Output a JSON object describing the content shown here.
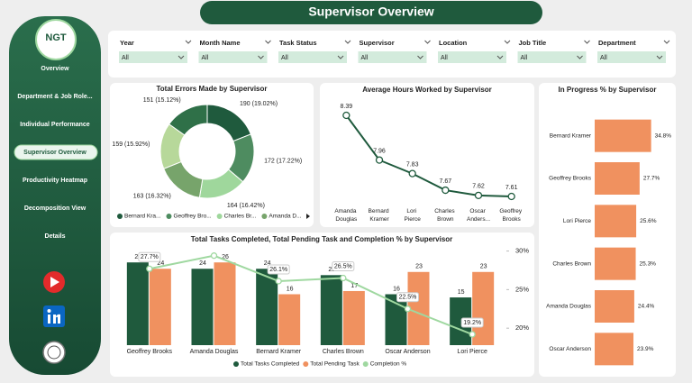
{
  "header": {
    "title": "Supervisor Overview"
  },
  "logo": {
    "text": "NGT"
  },
  "nav": {
    "items": [
      "Overview",
      "Department & Job Role...",
      "Individual Performance",
      "Supervisor Overview",
      "Productivity Heatmap",
      "Decomposition View",
      "Details"
    ],
    "active": 3
  },
  "filters": [
    {
      "label": "Year",
      "value": "All"
    },
    {
      "label": "Month Name",
      "value": "All"
    },
    {
      "label": "Task Status",
      "value": "All"
    },
    {
      "label": "Supervisor",
      "value": "All"
    },
    {
      "label": "Location",
      "value": "All"
    },
    {
      "label": "Job Title",
      "value": "All"
    },
    {
      "label": "Department",
      "value": "All"
    }
  ],
  "chart_data": [
    {
      "type": "donut",
      "title": "Total Errors Made by Supervisor",
      "categories": [
        "Bernard Kra...",
        "Geoffrey Bro...",
        "Charles Br...",
        "Amanda D...",
        null,
        null
      ],
      "values": [
        190,
        172,
        164,
        163,
        159,
        151
      ],
      "value_labels": [
        "190 (19.02%)",
        "172 (17.22%)",
        "164 (16.42%)",
        "163 (16.32%)",
        "159 (15.92%)",
        "151 (15.12%)"
      ],
      "colors": [
        "#1f5a3d",
        "#4e8c60",
        "#9fd79c",
        "#77a46b",
        "#b7d89a",
        "#2f7048"
      ]
    },
    {
      "type": "line",
      "title": "Average Hours Worked by Supervisor",
      "categories": [
        "Amanda Douglas",
        "Bernard Kramer",
        "Lori Pierce",
        "Charles Brown",
        "Oscar Anders...",
        "Geoffrey Brooks"
      ],
      "values": [
        8.39,
        7.96,
        7.83,
        7.67,
        7.62,
        7.61
      ],
      "color": "#1f5a3d"
    },
    {
      "type": "combo",
      "title": "Total Tasks Completed, Total Pending Task and Completion % by Supervisor",
      "categories": [
        "Geoffrey Brooks",
        "Amanda Douglas",
        "Bernard Kramer",
        "Charles Brown",
        "Oscar Anderson",
        "Lori Pierce"
      ],
      "ylim": [
        0,
        32
      ],
      "series": [
        {
          "name": "Total Tasks Completed",
          "color": "#1f5a3d",
          "values": [
            26,
            24,
            24,
            22,
            16,
            15
          ]
        },
        {
          "name": "Total Pending Task",
          "color": "#f0915f",
          "values": [
            24,
            26,
            16,
            17,
            23,
            23
          ]
        },
        {
          "name": "Completion %",
          "color": "#9fd8a0",
          "axis": "y2",
          "values": [
            27.7,
            29.4,
            26.1,
            26.5,
            22.5,
            19.2
          ],
          "value_labels": [
            "27.7%",
            null,
            "26.1%",
            "26.5%",
            "22.5%",
            "19.2%"
          ]
        }
      ],
      "y2lim": [
        17.8,
        31
      ],
      "y2ticks": [
        {
          "value": 30,
          "label": "30%"
        },
        {
          "value": 25,
          "label": "25%"
        },
        {
          "value": 20,
          "label": "20%"
        }
      ]
    },
    {
      "type": "hbar",
      "title": "In Progress % by Supervisor",
      "categories": [
        "Bernard Kramer",
        "Geoffrey Brooks",
        "Lori Pierce",
        "Charles Brown",
        "Amanda Douglas",
        "Oscar Anderson"
      ],
      "values": [
        34.8,
        27.7,
        25.6,
        25.3,
        24.4,
        23.9
      ],
      "value_labels": [
        "34.8%",
        "27.7%",
        "25.6%",
        "25.3%",
        "24.4%",
        "23.9%"
      ],
      "xlim": [
        0,
        35
      ],
      "color": "#f0915f"
    }
  ]
}
